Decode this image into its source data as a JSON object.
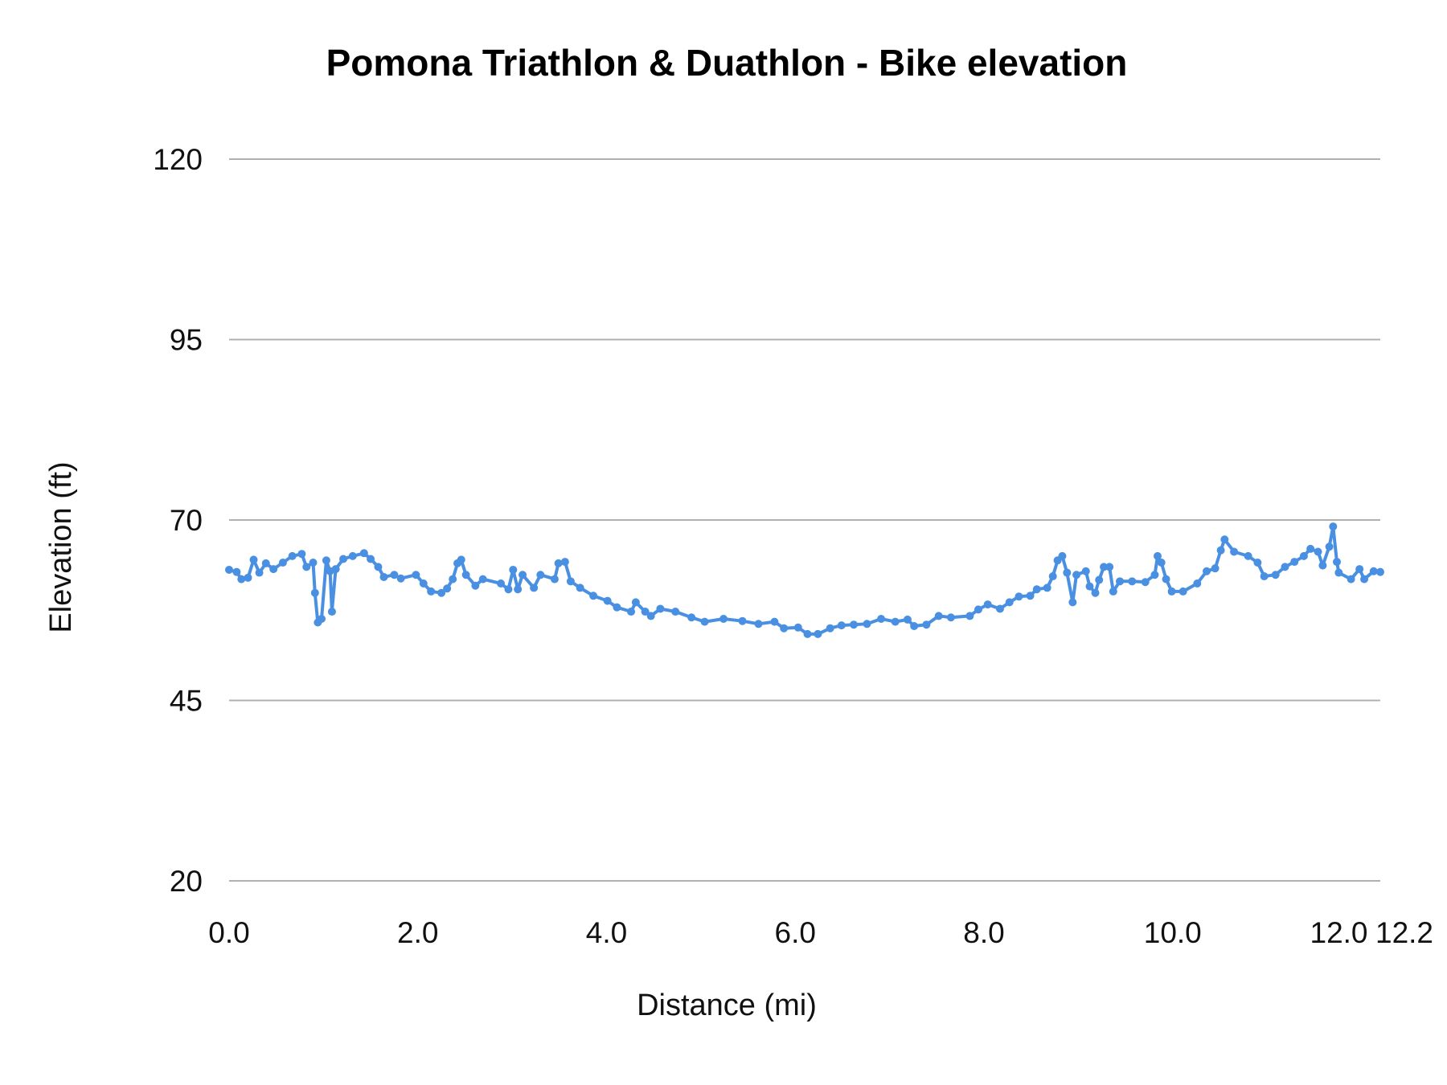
{
  "chart_data": {
    "type": "line",
    "title": "Pomona Triathlon & Duathlon - Bike elevation",
    "xlabel": "Distance (mi)",
    "ylabel": "Elevation (ft)",
    "xlim": [
      0,
      12.2
    ],
    "ylim": [
      20,
      120
    ],
    "x_ticks": [
      "0.0",
      "2.0",
      "4.0",
      "6.0",
      "8.0",
      "10.0",
      "12.0",
      "12.2"
    ],
    "x_tick_values": [
      0,
      2,
      4,
      6,
      8,
      10,
      12,
      12.2
    ],
    "y_ticks": [
      "20",
      "45",
      "70",
      "95",
      "120"
    ],
    "y_tick_values": [
      20,
      45,
      70,
      95,
      120
    ],
    "grid": "horizontal",
    "legend": "none",
    "markers": true,
    "series_color": "#4a90e2",
    "series": [
      {
        "x": [
          0.0,
          0.08,
          0.13,
          0.2,
          0.26,
          0.32,
          0.39,
          0.47,
          0.57,
          0.67,
          0.77,
          0.82,
          0.89,
          0.91,
          0.94,
          0.98,
          1.03,
          1.07,
          1.09,
          1.13,
          1.21,
          1.31,
          1.43,
          1.5,
          1.58,
          1.64,
          1.75,
          1.82,
          1.98,
          2.06,
          2.14,
          2.25,
          2.31,
          2.37,
          2.42,
          2.46,
          2.51,
          2.61,
          2.69,
          2.88,
          2.96,
          3.01,
          3.06,
          3.11,
          3.23,
          3.3,
          3.45,
          3.49,
          3.56,
          3.62,
          3.72,
          3.86,
          4.01,
          4.11,
          4.26,
          4.31,
          4.41,
          4.47,
          4.57,
          4.73,
          4.9,
          5.04,
          5.24,
          5.44,
          5.61,
          5.78,
          5.88,
          6.03,
          6.13,
          6.24,
          6.37,
          6.49,
          6.62,
          6.76,
          6.91,
          7.06,
          7.19,
          7.26,
          7.39,
          7.52,
          7.65,
          7.85,
          7.94,
          8.04,
          8.17,
          8.27,
          8.37,
          8.49,
          8.56,
          8.67,
          8.73,
          8.78,
          8.83,
          8.88,
          8.94,
          8.98,
          9.08,
          9.12,
          9.18,
          9.22,
          9.27,
          9.33,
          9.37,
          9.44,
          9.57,
          9.71,
          9.81,
          9.84,
          9.88,
          9.93,
          9.99,
          10.11,
          10.26,
          10.36,
          10.45,
          10.51,
          10.55,
          10.65,
          10.8,
          10.9,
          10.97,
          11.09,
          11.19,
          11.29,
          11.39,
          11.46,
          11.54,
          11.59,
          11.66,
          11.7,
          11.74,
          11.76,
          11.89,
          11.98,
          12.03,
          12.13,
          12.2
        ],
        "y": [
          63.1,
          62.8,
          61.8,
          62.0,
          64.5,
          62.7,
          64.0,
          63.2,
          64.1,
          65.0,
          65.3,
          63.5,
          64.1,
          59.9,
          55.8,
          56.3,
          64.4,
          62.9,
          57.3,
          63.2,
          64.6,
          65.0,
          65.4,
          64.6,
          63.5,
          62.1,
          62.4,
          61.9,
          62.4,
          61.2,
          60.1,
          59.9,
          60.5,
          61.8,
          64.0,
          64.5,
          62.4,
          60.9,
          61.8,
          61.2,
          60.4,
          63.1,
          60.4,
          62.4,
          60.6,
          62.4,
          61.8,
          64.0,
          64.2,
          61.5,
          60.6,
          59.5,
          58.8,
          57.9,
          57.3,
          58.6,
          57.3,
          56.7,
          57.7,
          57.3,
          56.5,
          55.9,
          56.3,
          56.0,
          55.6,
          55.9,
          55.0,
          55.1,
          54.2,
          54.2,
          55.0,
          55.4,
          55.5,
          55.6,
          56.3,
          55.9,
          56.2,
          55.3,
          55.5,
          56.7,
          56.5,
          56.7,
          57.6,
          58.3,
          57.7,
          58.6,
          59.4,
          59.5,
          60.4,
          60.6,
          62.2,
          64.4,
          65.0,
          62.7,
          58.6,
          62.4,
          62.9,
          60.8,
          59.9,
          61.7,
          63.5,
          63.5,
          60.1,
          61.5,
          61.5,
          61.4,
          62.4,
          65.0,
          64.1,
          61.8,
          60.1,
          60.1,
          61.2,
          62.9,
          63.3,
          65.8,
          67.3,
          65.6,
          65.0,
          64.1,
          62.2,
          62.4,
          63.5,
          64.2,
          65.0,
          66.0,
          65.6,
          63.7,
          66.3,
          69.1,
          64.2,
          62.7,
          61.8,
          63.2,
          61.8,
          62.9,
          62.8
        ]
      }
    ]
  }
}
